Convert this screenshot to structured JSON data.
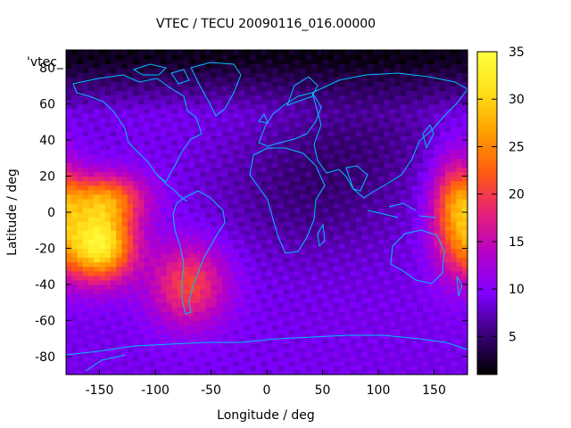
{
  "chart_data": {
    "type": "heatmap",
    "title": "VTEC / TECU 20090116_016.00000",
    "xlabel": "Longitude / deg",
    "ylabel": "Latitude / deg",
    "legend_entry": "'vtec_",
    "xlim": [
      -180,
      180
    ],
    "ylim": [
      -90,
      90
    ],
    "x_ticks": [
      -150,
      -100,
      -50,
      0,
      50,
      100,
      150
    ],
    "y_ticks": [
      -80,
      -60,
      -40,
      -20,
      0,
      20,
      40,
      60,
      80
    ],
    "colorbar": {
      "min": 1,
      "max": 35,
      "ticks": [
        5,
        10,
        15,
        20,
        25,
        30,
        35
      ],
      "palette": [
        "#000000",
        "#3a0078",
        "#7f00ff",
        "#b400c8",
        "#e8207a",
        "#ff5a10",
        "#ffa000",
        "#ffe01a",
        "#ffff40"
      ]
    },
    "grid_resolution": {
      "dlon": 5,
      "dlat": 2.5
    },
    "features": [
      {
        "name": "pacific-anomaly",
        "lon": -150,
        "lat": -18,
        "peak": 33
      },
      {
        "name": "pacific-crest-north",
        "lon": -145,
        "lat": 8,
        "peak": 27
      },
      {
        "name": "south-american-anomaly",
        "lon": -70,
        "lat": -40,
        "peak": 22
      },
      {
        "name": "west-pacific-anomaly",
        "lon": 170,
        "lat": 0,
        "peak": 24
      },
      {
        "name": "arctic-low",
        "lon": 0,
        "lat": 82,
        "peak": 2
      }
    ],
    "background_level": 9,
    "coastline_color": "#00bfff"
  }
}
